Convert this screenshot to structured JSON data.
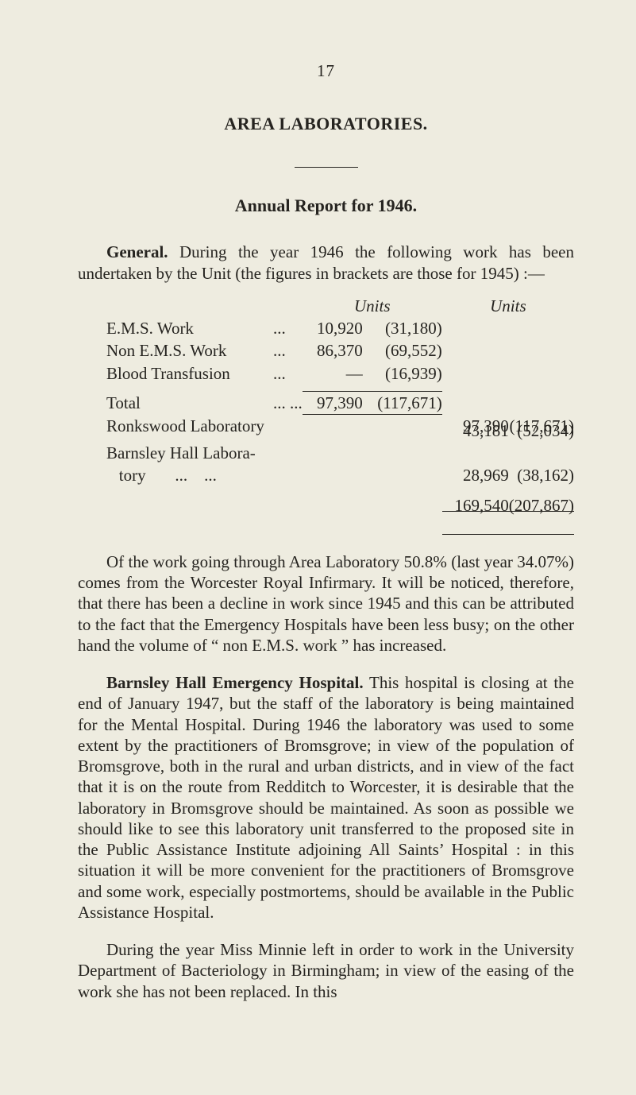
{
  "page_number": "17",
  "section_title": "AREA LABORATORIES.",
  "sub_title": "Annual Report for 1946.",
  "para_general_a": "General.",
  "para_general_b": "  During the year 1946 the following work has been undertaken by the Unit (the figures in brackets are those for 1945) :—",
  "fig": {
    "units_label": "Units",
    "rows": [
      {
        "label": "E.M.S. Work",
        "dots": "...",
        "n1": "10,920",
        "b1": "(31,180)"
      },
      {
        "label": "Non E.M.S. Work",
        "dots": "...",
        "n1": "86,370",
        "b1": "(69,552)"
      },
      {
        "label": "Blood Transfusion",
        "dots": "...",
        "n1": "—",
        "b1": "(16,939)"
      }
    ],
    "total_label": "Total",
    "total_dots": "...   ...",
    "total_n1": "97,390",
    "total_b1": "(117,671)",
    "carry_n2": "97,390",
    "carry_b2": "(117,671)",
    "ronks_label": "Ronkswood Laboratory",
    "ronks_n2": "43,181",
    "ronks_b2": "(52,034)",
    "barnsley_label1": "Barnsley Hall Labora-",
    "barnsley_label2": "   tory       ...    ...",
    "barnsley_n2": "28,969",
    "barnsley_b2": "(38,162)",
    "grand_n2": "169,540",
    "grand_b2": "(207,867)"
  },
  "para2": "Of the work going through Area Laboratory 50.8% (last year 34.07%) comes from the Worcester Royal Infirmary. It will be noticed, therefore, that there has been a decline in work since 1945 and this can be attributed to the fact that the Emergency Hospitals have been less busy; on the other hand the volume of “ non E.M.S. work ” has increased.",
  "para3_a": "Barnsley Hall Emergency Hospital.",
  "para3_b": "  This hospital is closing at the end of January 1947, but the staff of the laboratory is being maintained for the Mental Hospital. During 1946 the laboratory was used to some extent by the practitioners of Bromsgrove; in view of the population of Bromsgrove, both in the rural and urban districts, and in view of the fact that it is on the route from Redditch to Worcester, it is desirable that the laboratory in Bromsgrove should be maintained. As soon as possible we should like to see this laboratory unit transferred to the proposed site in the Public Assistance Institute adjoining All Saints’ Hospital : in this situation it will be more convenient for the practitioners of Bromsgrove and some work, especially postmortems, should be available in the Public Assistance Hospital.",
  "para4": "During the year Miss Minnie left in order to work in the University Department of Bacteriology in Birmingham; in view of the easing of the work she has not been replaced. In this"
}
